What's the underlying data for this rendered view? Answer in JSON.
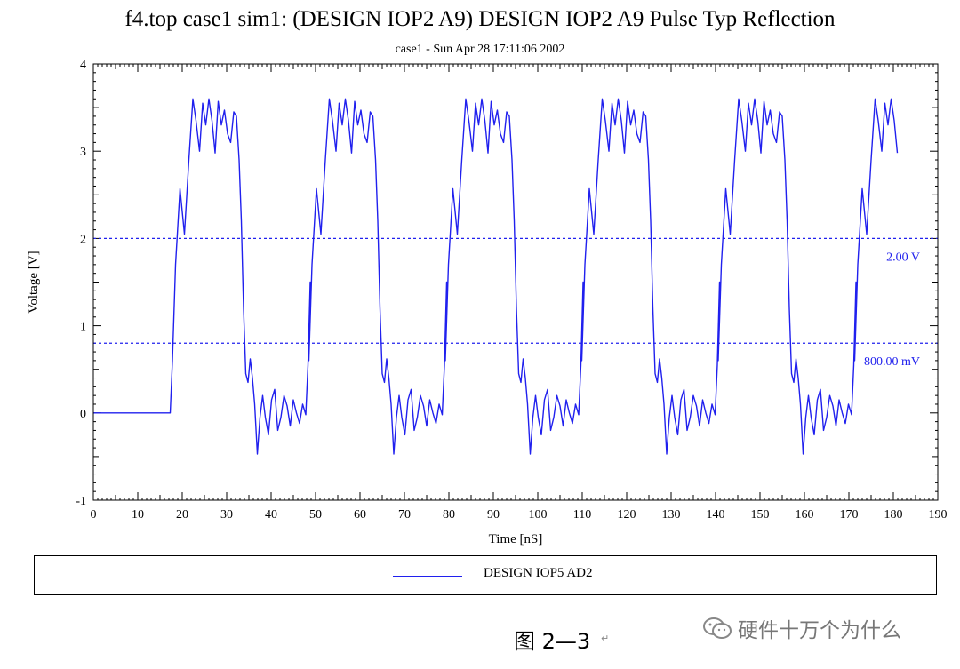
{
  "chart_data": {
    "type": "line",
    "title": "f4.top case1 sim1: (DESIGN IOP2 A9) DESIGN IOP2 A9 Pulse Typ Reflection",
    "subtitle": "case1 - Sun Apr 28 17:11:06 2002",
    "xlabel": "Time [nS]",
    "ylabel": "Voltage [V]",
    "xlim": [
      0,
      190
    ],
    "ylim": [
      -1,
      4
    ],
    "x_ticks": [
      "0",
      "10",
      "20",
      "30",
      "40",
      "50",
      "60",
      "70",
      "80",
      "90",
      "100",
      "110",
      "120",
      "130",
      "140",
      "150",
      "160",
      "170",
      "180",
      "190"
    ],
    "y_ticks": [
      "-1",
      "0",
      "1",
      "2",
      "3",
      "4"
    ],
    "grid": false,
    "reference_lines": [
      {
        "value": 2.0,
        "label": "2.00 V"
      },
      {
        "value": 0.8,
        "label": "800.00 mV"
      }
    ],
    "series": [
      {
        "name": "DESIGN IOP5 AD2",
        "color": "#2020ee",
        "x": [
          0,
          17.3,
          17.8,
          18.5,
          19.5,
          20.5,
          21.5,
          22.4,
          23.1,
          23.9,
          24.6,
          25.3,
          26.0,
          26.7,
          27.4,
          28.1,
          28.8,
          29.5,
          30.2,
          30.9,
          31.6,
          32.2,
          32.8,
          33.3,
          33.8,
          34.3,
          34.8,
          35.3,
          35.8,
          36.3,
          36.9,
          37.5,
          38.1,
          38.7,
          39.4,
          40.1,
          40.8,
          41.5,
          42.2,
          42.9,
          43.6,
          44.3,
          45.0,
          45.7,
          46.4,
          47.1,
          47.8,
          48.3,
          48.8
        ],
        "y": [
          0,
          0,
          0.6,
          1.7,
          2.57,
          2.05,
          2.9,
          3.6,
          3.35,
          3.0,
          3.55,
          3.3,
          3.6,
          3.35,
          2.98,
          3.57,
          3.3,
          3.47,
          3.2,
          3.1,
          3.45,
          3.4,
          2.9,
          2.2,
          1.2,
          0.45,
          0.35,
          0.62,
          0.4,
          0.1,
          -0.47,
          -0.05,
          0.2,
          -0.05,
          -0.25,
          0.15,
          0.27,
          -0.2,
          -0.05,
          0.2,
          0.08,
          -0.15,
          0.15,
          0.0,
          -0.12,
          0.1,
          -0.02,
          0.55,
          1.5
        ],
        "period_ns": 30.7,
        "cycles": 5.5,
        "x_end": 181.5
      }
    ]
  },
  "legend": {
    "label": "DESIGN IOP5 AD2"
  },
  "caption": {
    "text": "图 2—3",
    "mark": "↵"
  },
  "watermark": {
    "text": "硬件十万个为什么"
  }
}
